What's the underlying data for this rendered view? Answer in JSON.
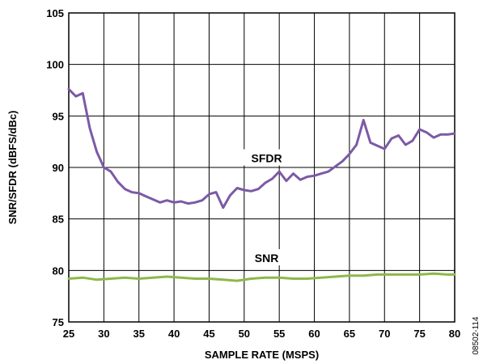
{
  "chart_data": {
    "type": "line",
    "xlabel": "SAMPLE RATE (MSPS)",
    "ylabel": "SNR/SFDR (dBFS/dBc)",
    "xlim": [
      25,
      80
    ],
    "ylim": [
      75,
      105
    ],
    "xticks": [
      "25",
      "30",
      "35",
      "40",
      "45",
      "50",
      "55",
      "60",
      "65",
      "70",
      "75",
      "80"
    ],
    "yticks": [
      "75",
      "80",
      "85",
      "90",
      "95",
      "100",
      "105"
    ],
    "grid": true,
    "figure_id": "08502-114",
    "series": [
      {
        "name": "SFDR",
        "color": "#7b5aa6",
        "x": [
          25,
          26,
          27,
          28,
          29,
          30,
          31,
          32,
          33,
          34,
          35,
          36,
          37,
          38,
          39,
          40,
          41,
          42,
          43,
          44,
          45,
          46,
          47,
          48,
          49,
          50,
          51,
          52,
          53,
          54,
          55,
          56,
          57,
          58,
          59,
          60,
          61,
          62,
          63,
          64,
          65,
          66,
          67,
          68,
          69,
          70,
          71,
          72,
          73,
          74,
          75,
          76,
          77,
          78,
          79,
          80
        ],
        "y": [
          97.6,
          96.9,
          97.2,
          93.8,
          91.5,
          90.0,
          89.6,
          88.6,
          87.9,
          87.6,
          87.5,
          87.2,
          86.9,
          86.6,
          86.8,
          86.6,
          86.7,
          86.5,
          86.6,
          86.8,
          87.4,
          87.6,
          86.1,
          87.3,
          88.0,
          87.8,
          87.7,
          87.9,
          88.5,
          88.9,
          89.6,
          88.7,
          89.4,
          88.8,
          89.1,
          89.2,
          89.4,
          89.6,
          90.1,
          90.6,
          91.3,
          92.2,
          94.6,
          92.4,
          92.1,
          91.8,
          92.8,
          93.1,
          92.2,
          92.6,
          93.7,
          93.4,
          92.9,
          93.2,
          93.2,
          93.3
        ]
      },
      {
        "name": "SNR",
        "color": "#8db84a",
        "x": [
          25,
          27,
          29,
          31,
          33,
          35,
          37,
          39,
          41,
          43,
          45,
          47,
          49,
          51,
          53,
          55,
          57,
          59,
          61,
          63,
          65,
          67,
          69,
          71,
          73,
          75,
          77,
          79,
          80
        ],
        "y": [
          79.2,
          79.3,
          79.1,
          79.2,
          79.3,
          79.2,
          79.3,
          79.4,
          79.3,
          79.2,
          79.2,
          79.1,
          79.0,
          79.2,
          79.3,
          79.3,
          79.2,
          79.2,
          79.3,
          79.4,
          79.5,
          79.5,
          79.6,
          79.6,
          79.6,
          79.6,
          79.7,
          79.6,
          79.6
        ]
      }
    ]
  }
}
